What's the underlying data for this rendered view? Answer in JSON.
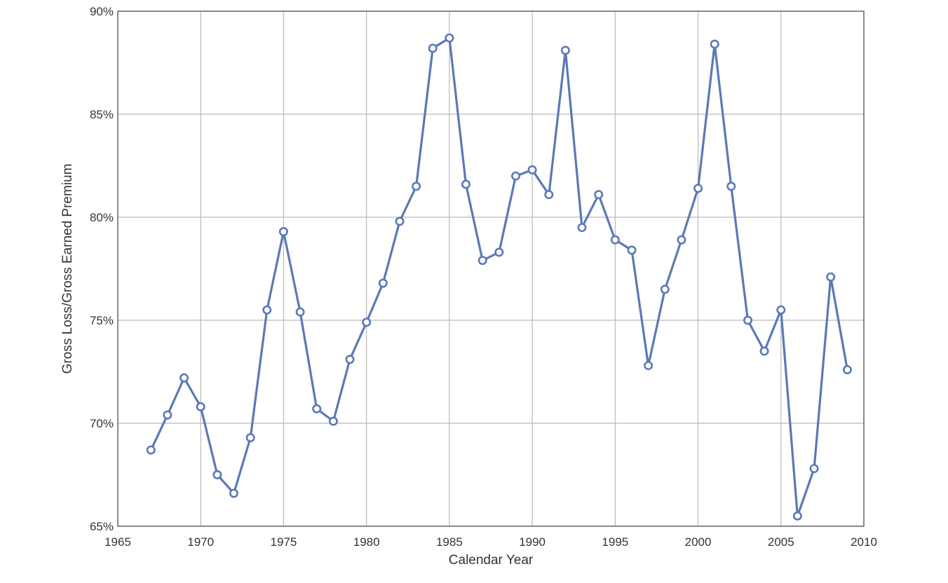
{
  "chart_data": {
    "type": "line",
    "title": "",
    "xlabel": "Calendar Year",
    "ylabel": "Gross Loss/Gross Earned Premium",
    "xlim": [
      1965,
      2010
    ],
    "ylim": [
      65,
      90
    ],
    "x_ticks": [
      "1965",
      "1970",
      "1975",
      "1980",
      "1985",
      "1990",
      "1995",
      "2000",
      "2005",
      "2010"
    ],
    "y_ticks": [
      "65%",
      "70%",
      "75%",
      "80%",
      "85%",
      "90%"
    ],
    "grid": true,
    "line_color": "#5b79b6",
    "marker": "circle",
    "series": [
      {
        "x": [
          1967,
          1968,
          1969,
          1970,
          1971,
          1972,
          1973,
          1974,
          1975,
          1976,
          1977,
          1978,
          1979,
          1980,
          1981,
          1982,
          1983,
          1984,
          1985,
          1986,
          1987,
          1988,
          1989,
          1990,
          1991,
          1992,
          1993,
          1994,
          1995,
          1996,
          1997,
          1998,
          1999,
          2000,
          2001,
          2002,
          2003,
          2004,
          2005,
          2006,
          2007,
          2008,
          2009
        ],
        "values": [
          68.7,
          70.4,
          72.2,
          70.8,
          67.5,
          66.6,
          69.3,
          75.5,
          79.3,
          75.4,
          70.7,
          70.1,
          73.1,
          74.9,
          76.8,
          79.8,
          81.5,
          88.2,
          88.7,
          81.6,
          77.9,
          78.3,
          82.0,
          82.3,
          81.1,
          88.1,
          79.5,
          81.1,
          78.9,
          78.4,
          72.8,
          76.5,
          78.9,
          81.4,
          88.4,
          81.5,
          75.0,
          73.5,
          75.5,
          65.5,
          67.8,
          77.1,
          72.6
        ]
      }
    ]
  }
}
